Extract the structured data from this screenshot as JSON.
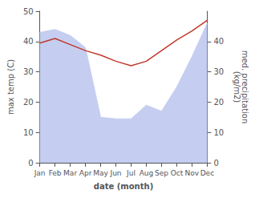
{
  "chart_data": {
    "type": "line",
    "xlabel": "date (month)",
    "ylabel": "max temp (C)",
    "y2label": "med. precipitation\n(kg/m2)",
    "categories": [
      "Jan",
      "Feb",
      "Mar",
      "Apr",
      "May",
      "Jun",
      "Jul",
      "Aug",
      "Sep",
      "Oct",
      "Nov",
      "Dec"
    ],
    "series": [
      {
        "type": "area",
        "axis": "y2",
        "color": "#c5cef0",
        "values": [
          43.0,
          44.0,
          42.0,
          38.0,
          15.0,
          14.5,
          14.5,
          19.0,
          17.0,
          25.0,
          35.0,
          46.0
        ]
      },
      {
        "type": "line",
        "color": "#c0392b",
        "values": [
          39.5,
          41.0,
          39.0,
          37.0,
          35.5,
          33.5,
          32.0,
          33.5,
          37.0,
          40.5,
          43.5,
          47.0
        ]
      }
    ],
    "ylim": [
      0,
      50
    ],
    "yticks": [
      0,
      10,
      20,
      30,
      40,
      50
    ],
    "y2lim": [
      0,
      50
    ],
    "y2ticks": [
      0,
      10,
      20,
      30,
      40
    ],
    "grid": false
  }
}
